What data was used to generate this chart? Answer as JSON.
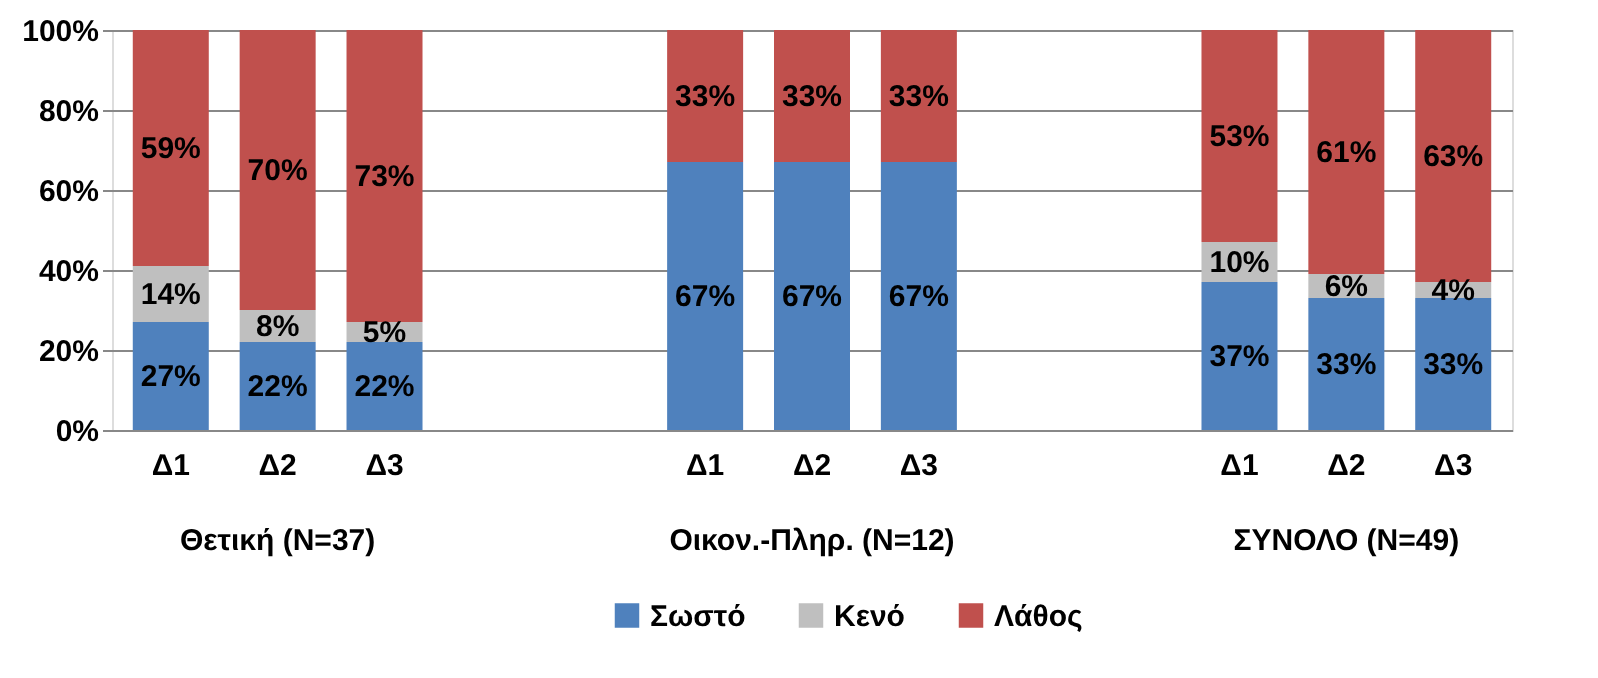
{
  "chart_data": {
    "type": "bar",
    "stacked": true,
    "categories": [
      "Δ1",
      "Δ2",
      "Δ3",
      null,
      null,
      "Δ1",
      "Δ2",
      "Δ3",
      null,
      null,
      "Δ1",
      "Δ2",
      "Δ3"
    ],
    "series": [
      {
        "name": "Σωστό",
        "color": "#4f81bd",
        "values": [
          27,
          22,
          22,
          null,
          null,
          67,
          67,
          67,
          null,
          null,
          37,
          33,
          33
        ],
        "value_labels": [
          "27%",
          "22%",
          "22%",
          null,
          null,
          "67%",
          "67%",
          "67%",
          null,
          null,
          "37%",
          "33%",
          "33%"
        ]
      },
      {
        "name": "Κενό",
        "color": "#bfbfbf",
        "values": [
          14,
          8,
          5,
          null,
          null,
          0,
          0,
          0,
          null,
          null,
          10,
          6,
          4
        ],
        "value_labels": [
          "14%",
          "8%",
          "5%",
          null,
          null,
          null,
          null,
          null,
          null,
          null,
          "10%",
          "6%",
          "4%"
        ]
      },
      {
        "name": "Λάθος",
        "color": "#c0504d",
        "values": [
          59,
          70,
          73,
          null,
          null,
          33,
          33,
          33,
          null,
          null,
          53,
          61,
          63
        ],
        "value_labels": [
          "59%",
          "70%",
          "73%",
          null,
          null,
          "33%",
          "33%",
          "33%",
          null,
          null,
          "53%",
          "61%",
          "63%"
        ]
      }
    ],
    "ylim": [
      0,
      100
    ],
    "yticks": [
      {
        "value": 0,
        "label": "0%"
      },
      {
        "value": 20,
        "label": "20%"
      },
      {
        "value": 40,
        "label": "40%"
      },
      {
        "value": 60,
        "label": "60%"
      },
      {
        "value": 80,
        "label": "80%"
      },
      {
        "value": 100,
        "label": "100%"
      }
    ],
    "annotations": [
      "Θετική (N=37)",
      "Οικον.-Πληρ. (N=12)",
      "ΣΥΝΟΛΟ (N=49)"
    ],
    "grid": "y",
    "legend": "bottom"
  }
}
